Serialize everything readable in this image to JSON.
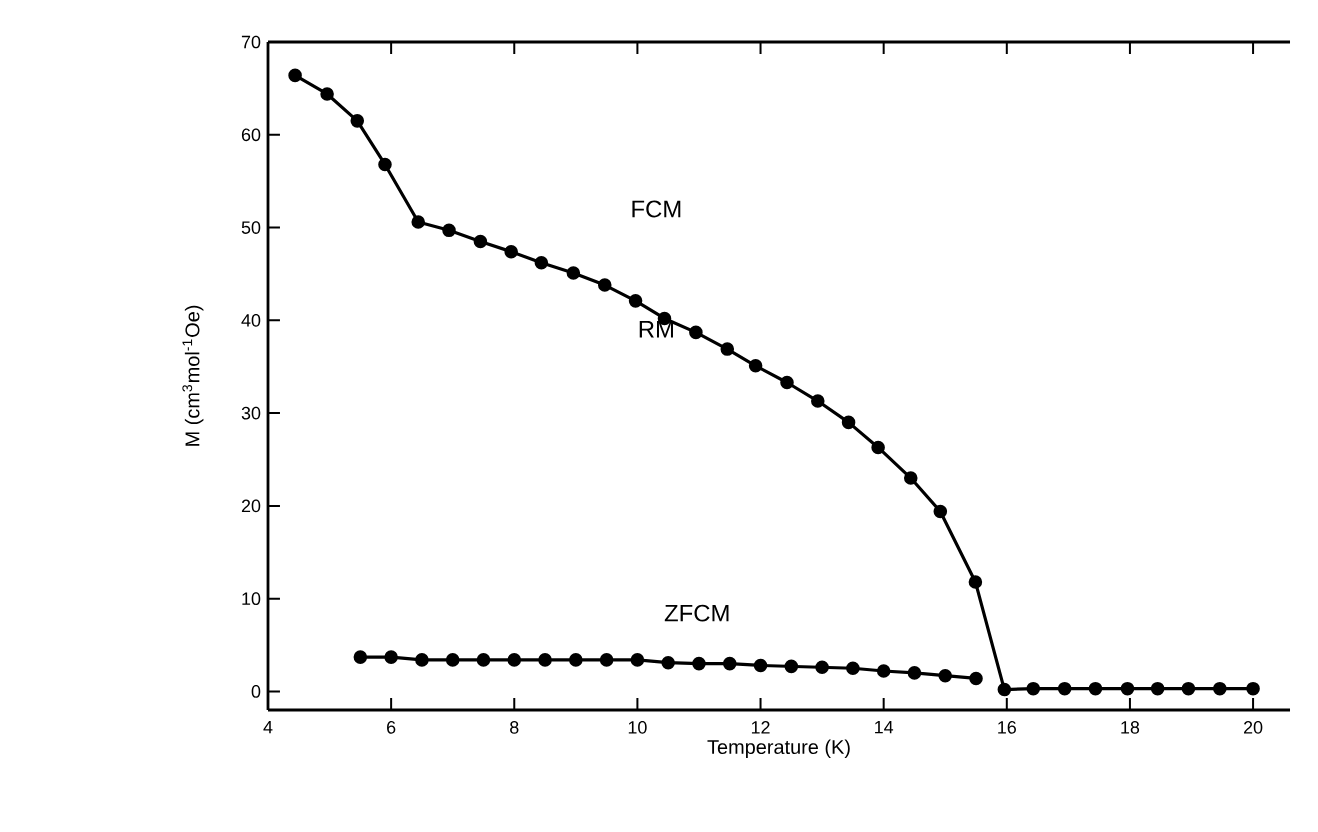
{
  "chart_data": {
    "type": "line",
    "xlabel": "Temperature (K)",
    "ylabel": "M  (cm$^{3}$mol$^{-1}$Oe)",
    "xlim": [
      4,
      20.6
    ],
    "ylim": [
      -2,
      70
    ],
    "xticks": [
      4,
      6,
      8,
      10,
      12,
      14,
      16,
      18,
      20
    ],
    "yticks": [
      0,
      10,
      20,
      30,
      40,
      50,
      60,
      70
    ],
    "marker": "circle",
    "line_style": "solid",
    "grid": false,
    "series": [
      {
        "color": "#000000",
        "x": [
          4.44,
          4.96,
          5.45,
          5.9,
          6.44,
          6.94,
          7.45,
          7.95,
          8.44,
          8.96,
          9.47,
          9.97,
          10.44,
          10.95,
          11.46,
          11.92,
          12.43,
          12.93,
          13.43,
          13.91,
          14.44,
          14.92,
          15.49,
          15.96,
          16.43,
          16.94,
          17.44,
          17.96,
          18.45,
          18.95,
          19.46,
          20.0
        ],
        "values": [
          66.4,
          64.4,
          61.5,
          56.8,
          50.6,
          49.7,
          48.5,
          47.4,
          46.2,
          45.1,
          43.8,
          42.1,
          40.2,
          38.7,
          36.9,
          35.1,
          33.3,
          31.3,
          29.0,
          26.3,
          23.0,
          19.4,
          11.8,
          0.2,
          0.3,
          0.3,
          0.3,
          0.3,
          0.3,
          0.3,
          0.3,
          0.3
        ]
      },
      {
        "color": "#000000",
        "x": [
          5.5,
          6.0,
          6.5,
          7.0,
          7.5,
          8.0,
          8.5,
          9.0,
          9.5,
          10.0,
          10.5,
          11.0,
          11.5,
          12.0,
          12.5,
          13.0,
          13.5,
          14.0,
          14.5,
          15.0,
          15.5
        ],
        "values": [
          3.7,
          3.7,
          3.4,
          3.4,
          3.4,
          3.4,
          3.4,
          3.4,
          3.4,
          3.4,
          3.1,
          3.0,
          3.0,
          2.8,
          2.7,
          2.6,
          2.5,
          2.2,
          2.0,
          1.7,
          1.4
        ]
      }
    ],
    "annotations": [
      "FCM",
      "RM",
      "ZFCM"
    ]
  }
}
